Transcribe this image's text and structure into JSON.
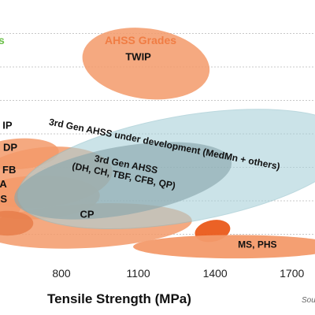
{
  "colors": {
    "conventional": "#6cc04a",
    "ahss": "#f07d44",
    "ahss_fill": "#f39a6a",
    "third_gen_fill": "#a9d2da",
    "dark_band": "#ea5a1a",
    "gridline": "#c8c8c8"
  },
  "chart_data": {
    "type": "area",
    "title": "",
    "xlabel": "Tensile Strength (MPa)",
    "ylabel": "",
    "xlim": [
      560,
      1790
    ],
    "ylim": [
      0,
      80
    ],
    "x_ticks": [
      800,
      1100,
      1400,
      1700
    ],
    "gridlines_y": [
      10,
      20,
      30,
      40,
      50,
      60,
      70
    ],
    "grid": "horizontal",
    "legend": [
      {
        "label": "s",
        "color": "#6cc04a",
        "note": "truncated at left edge"
      },
      {
        "label": "AHSS Grades",
        "color": "#f07d44"
      }
    ],
    "regions": [
      {
        "label": "TWIP",
        "cx": 1130,
        "cy": 61,
        "rx": 250,
        "ry": 10.5,
        "rot": 8,
        "style": "ahss"
      },
      {
        "label": "3rd Gen AHSS under development (MedMn + others)",
        "cx": 1280,
        "cy": 29.5,
        "rx": 660,
        "ry": 15.8,
        "rot": -10,
        "style": "third_gen_light"
      },
      {
        "label": "3rd Gen AHSS\n(DH, CH, TBF, CFB, QP)",
        "cx": 1040,
        "cy": 26,
        "rx": 430,
        "ry": 10.2,
        "rot": -10,
        "style": "third_gen_dark"
      },
      {
        "label": "CP",
        "cx": 900,
        "cy": 12.5,
        "rx": 410,
        "ry": 6.6,
        "rot": -3,
        "style": "ahss"
      },
      {
        "label": "MS, PHS",
        "cx": 1480,
        "cy": 6.3,
        "rx": 400,
        "ry": 3.5,
        "rot": 0,
        "style": "ahss_strong"
      },
      {
        "label": "DP",
        "cx": 730,
        "cy": 27,
        "rx": 270,
        "ry": 9,
        "rot": -6,
        "style": "ahss"
      },
      {
        "label": "FB",
        "cx": 700,
        "cy": 21,
        "rx": 250,
        "ry": 6.5,
        "rot": -2,
        "style": "ahss"
      },
      {
        "label": "S",
        "cx": 590,
        "cy": 13.3,
        "rx": 100,
        "ry": 3.7,
        "rot": 0,
        "style": "ahss_dark"
      },
      {
        "label": "IP",
        "cx": 630,
        "cy": 34,
        "rx": 160,
        "ry": 4.6,
        "rot": -4,
        "style": "ahss"
      },
      {
        "label": "A",
        "cx": 580,
        "cy": 18,
        "rx": 60,
        "ry": 3,
        "rot": 0,
        "style": "ahss"
      }
    ],
    "source_label": "Sou"
  }
}
